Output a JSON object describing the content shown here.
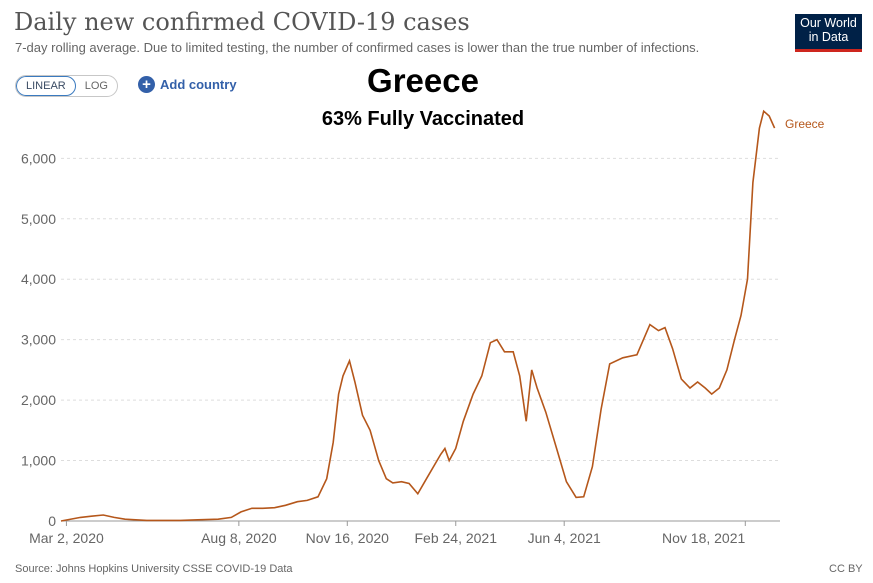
{
  "header": {
    "title": "Daily new confirmed COVID-19 cases",
    "subtitle": "7-day rolling average. Due to limited testing, the number of confirmed cases is lower than the true number of infections.",
    "logo_line1": "Our World",
    "logo_line2": "in Data"
  },
  "controls": {
    "linear_label": "LINEAR",
    "log_label": "LOG",
    "add_country_label": "Add country"
  },
  "overlay": {
    "heading": "Greece",
    "subheading": "63% Fully Vaccinated"
  },
  "footer": {
    "source": "Source: Johns Hopkins University CSSE COVID-19 Data",
    "license": "CC BY"
  },
  "colors": {
    "series": "#b5571b",
    "grid": "#dddddd",
    "axis": "#999999",
    "tick_text": "#666666"
  },
  "chart_data": {
    "type": "line",
    "title": "Daily new confirmed COVID-19 cases",
    "xlabel": "",
    "ylabel": "",
    "x_range": [
      "2020-02-26",
      "2021-12-20"
    ],
    "ylim": [
      0,
      6800
    ],
    "y_ticks": [
      0,
      1000,
      2000,
      3000,
      4000,
      5000,
      6000
    ],
    "y_tick_labels": [
      "0",
      "1,000",
      "2,000",
      "3,000",
      "4,000",
      "5,000",
      "6,000"
    ],
    "x_ticks": [
      "2020-03-02",
      "2020-08-08",
      "2020-11-16",
      "2021-02-24",
      "2021-06-04",
      "2021-11-18"
    ],
    "x_tick_labels": [
      "Mar 2, 2020",
      "Aug 8, 2020",
      "Nov 16, 2020",
      "Feb 24, 2021",
      "Jun 4, 2021",
      "Nov 18, 2021"
    ],
    "grid": true,
    "series": [
      {
        "name": "Greece",
        "color": "#b5571b",
        "points": [
          [
            "2020-02-26",
            0
          ],
          [
            "2020-03-15",
            60
          ],
          [
            "2020-03-25",
            80
          ],
          [
            "2020-04-05",
            100
          ],
          [
            "2020-04-15",
            60
          ],
          [
            "2020-04-25",
            30
          ],
          [
            "2020-05-15",
            10
          ],
          [
            "2020-06-15",
            10
          ],
          [
            "2020-07-01",
            20
          ],
          [
            "2020-07-20",
            30
          ],
          [
            "2020-08-01",
            60
          ],
          [
            "2020-08-10",
            150
          ],
          [
            "2020-08-20",
            210
          ],
          [
            "2020-08-30",
            210
          ],
          [
            "2020-09-10",
            220
          ],
          [
            "2020-09-20",
            260
          ],
          [
            "2020-10-01",
            320
          ],
          [
            "2020-10-10",
            340
          ],
          [
            "2020-10-20",
            400
          ],
          [
            "2020-10-28",
            700
          ],
          [
            "2020-11-03",
            1300
          ],
          [
            "2020-11-08",
            2100
          ],
          [
            "2020-11-12",
            2400
          ],
          [
            "2020-11-18",
            2650
          ],
          [
            "2020-11-23",
            2300
          ],
          [
            "2020-11-30",
            1750
          ],
          [
            "2020-12-07",
            1500
          ],
          [
            "2020-12-15",
            1000
          ],
          [
            "2020-12-22",
            700
          ],
          [
            "2020-12-28",
            630
          ],
          [
            "2021-01-05",
            650
          ],
          [
            "2021-01-12",
            620
          ],
          [
            "2021-01-20",
            450
          ],
          [
            "2021-01-28",
            700
          ],
          [
            "2021-02-10",
            1100
          ],
          [
            "2021-02-14",
            1200
          ],
          [
            "2021-02-18",
            1000
          ],
          [
            "2021-02-24",
            1200
          ],
          [
            "2021-03-03",
            1650
          ],
          [
            "2021-03-12",
            2100
          ],
          [
            "2021-03-20",
            2400
          ],
          [
            "2021-03-28",
            2950
          ],
          [
            "2021-04-03",
            3000
          ],
          [
            "2021-04-10",
            2800
          ],
          [
            "2021-04-18",
            2800
          ],
          [
            "2021-04-24",
            2400
          ],
          [
            "2021-04-30",
            1650
          ],
          [
            "2021-05-05",
            2500
          ],
          [
            "2021-05-10",
            2200
          ],
          [
            "2021-05-18",
            1800
          ],
          [
            "2021-05-28",
            1200
          ],
          [
            "2021-06-06",
            650
          ],
          [
            "2021-06-15",
            390
          ],
          [
            "2021-06-22",
            400
          ],
          [
            "2021-06-30",
            900
          ],
          [
            "2021-07-08",
            1850
          ],
          [
            "2021-07-16",
            2600
          ],
          [
            "2021-07-28",
            2700
          ],
          [
            "2021-08-10",
            2750
          ],
          [
            "2021-08-22",
            3250
          ],
          [
            "2021-08-30",
            3150
          ],
          [
            "2021-09-05",
            3200
          ],
          [
            "2021-09-12",
            2850
          ],
          [
            "2021-09-20",
            2350
          ],
          [
            "2021-09-28",
            2200
          ],
          [
            "2021-10-05",
            2300
          ],
          [
            "2021-10-12",
            2200
          ],
          [
            "2021-10-18",
            2100
          ],
          [
            "2021-10-25",
            2200
          ],
          [
            "2021-11-01",
            2500
          ],
          [
            "2021-11-08",
            3000
          ],
          [
            "2021-11-14",
            3400
          ],
          [
            "2021-11-20",
            4000
          ],
          [
            "2021-11-25",
            5600
          ],
          [
            "2021-12-01",
            6500
          ],
          [
            "2021-12-05",
            6780
          ],
          [
            "2021-12-10",
            6700
          ],
          [
            "2021-12-15",
            6500
          ]
        ]
      }
    ]
  }
}
